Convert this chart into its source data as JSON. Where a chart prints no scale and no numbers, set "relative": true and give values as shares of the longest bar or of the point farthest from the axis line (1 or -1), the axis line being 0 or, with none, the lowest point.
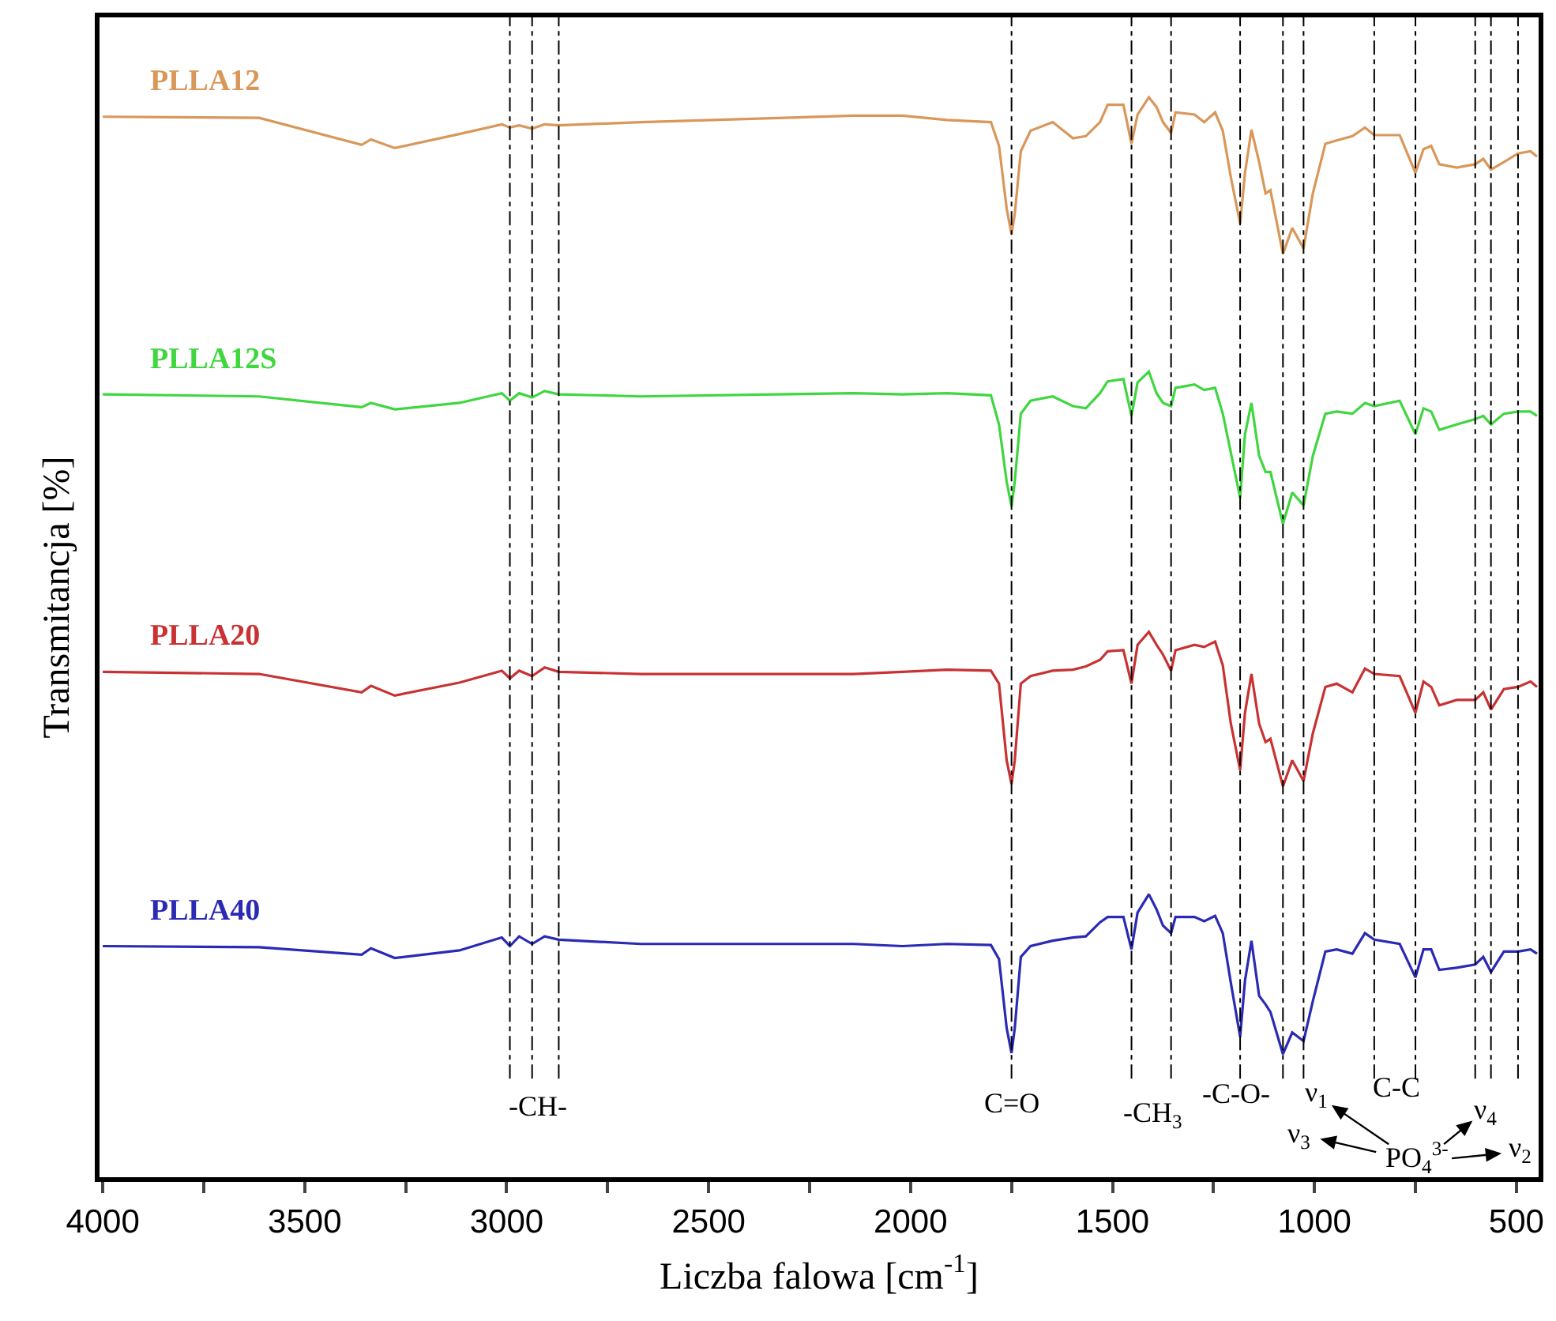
{
  "chart_data": {
    "type": "line",
    "relative": true,
    "xlabel": "Liczba falowa [cm$^{-1}$]",
    "ylabel": "Transmitancja [%]",
    "xlim": [
      4008,
      445
    ],
    "xticks": [
      4000,
      {
        "value": 3750,
        "label": null
      },
      3500,
      {
        "value": 3250,
        "label": null
      },
      3000,
      {
        "value": 2750,
        "label": null
      },
      2500,
      {
        "value": 2250,
        "label": null
      },
      2000,
      {
        "value": 1750,
        "label": null
      },
      1500,
      {
        "value": 1250,
        "label": null
      },
      1000,
      {
        "value": 750,
        "label": null
      },
      500
    ],
    "legend": false,
    "marker": "none",
    "line_style": "solid",
    "tick_labels": "x",
    "x": [
      4000,
      3613,
      3359,
      3336,
      3277,
      3117,
      3012,
      2992,
      2969,
      2937,
      2906,
      2871,
      2668,
      2141,
      2020,
      1910,
      1801,
      1781,
      1762,
      1750,
      1742,
      1727,
      1703,
      1648,
      1598,
      1566,
      1531,
      1512,
      1473,
      1453,
      1438,
      1410,
      1391,
      1375,
      1355,
      1344,
      1297,
      1273,
      1246,
      1227,
      1207,
      1184,
      1172,
      1156,
      1137,
      1121,
      1109,
      1078,
      1055,
      1027,
      1004,
      973,
      945,
      906,
      875,
      852,
      789,
      750,
      730,
      711,
      691,
      648,
      602,
      582,
      563,
      531,
      496,
      465,
      449
    ],
    "series": [
      {
        "name": "PLLA12",
        "color": "#d9975a",
        "values": [
          0.982,
          0.981,
          0.956,
          0.961,
          0.953,
          0.966,
          0.975,
          0.972,
          0.974,
          0.971,
          0.975,
          0.974,
          0.977,
          0.983,
          0.983,
          0.979,
          0.977,
          0.955,
          0.897,
          0.873,
          0.892,
          0.95,
          0.969,
          0.977,
          0.962,
          0.964,
          0.977,
          0.993,
          0.993,
          0.957,
          0.984,
          1,
          0.991,
          0.977,
          0.967,
          0.986,
          0.984,
          0.977,
          0.986,
          0.969,
          0.926,
          0.883,
          0.93,
          0.97,
          0.94,
          0.911,
          0.914,
          0.855,
          0.879,
          0.86,
          0.911,
          0.957,
          0.96,
          0.964,
          0.972,
          0.965,
          0.965,
          0.93,
          0.952,
          0.955,
          0.938,
          0.935,
          0.938,
          0.943,
          0.933,
          0.94,
          0.948,
          0.95,
          0.945
        ]
      },
      {
        "name": "PLLA12S",
        "color": "#3fd63f",
        "values": [
          0.725,
          0.723,
          0.713,
          0.717,
          0.711,
          0.717,
          0.726,
          0.719,
          0.726,
          0.722,
          0.728,
          0.725,
          0.723,
          0.726,
          0.725,
          0.726,
          0.724,
          0.697,
          0.644,
          0.621,
          0.644,
          0.707,
          0.719,
          0.723,
          0.714,
          0.712,
          0.726,
          0.737,
          0.739,
          0.705,
          0.736,
          0.746,
          0.726,
          0.717,
          0.714,
          0.731,
          0.734,
          0.729,
          0.731,
          0.707,
          0.671,
          0.629,
          0.688,
          0.717,
          0.668,
          0.653,
          0.653,
          0.605,
          0.634,
          0.622,
          0.668,
          0.707,
          0.709,
          0.707,
          0.717,
          0.714,
          0.719,
          0.688,
          0.712,
          0.709,
          0.692,
          0.697,
          0.702,
          0.705,
          0.697,
          0.707,
          0.709,
          0.709,
          0.705
        ]
      },
      {
        "name": "PLLA20",
        "color": "#c83232",
        "values": [
          0.468,
          0.466,
          0.449,
          0.455,
          0.446,
          0.458,
          0.469,
          0.462,
          0.469,
          0.464,
          0.472,
          0.468,
          0.466,
          0.466,
          0.468,
          0.47,
          0.469,
          0.457,
          0.386,
          0.364,
          0.386,
          0.457,
          0.464,
          0.469,
          0.47,
          0.473,
          0.479,
          0.487,
          0.488,
          0.457,
          0.493,
          0.505,
          0.493,
          0.484,
          0.469,
          0.488,
          0.493,
          0.491,
          0.496,
          0.474,
          0.42,
          0.377,
          0.43,
          0.466,
          0.42,
          0.403,
          0.406,
          0.362,
          0.386,
          0.367,
          0.411,
          0.454,
          0.457,
          0.449,
          0.471,
          0.466,
          0.464,
          0.43,
          0.459,
          0.454,
          0.437,
          0.442,
          0.442,
          0.449,
          0.433,
          0.452,
          0.454,
          0.459,
          0.454
        ]
      },
      {
        "name": "PLLA40",
        "color": "#2a2ab4",
        "values": [
          0.214,
          0.213,
          0.206,
          0.212,
          0.203,
          0.21,
          0.222,
          0.214,
          0.223,
          0.216,
          0.223,
          0.22,
          0.216,
          0.216,
          0.214,
          0.216,
          0.215,
          0.202,
          0.138,
          0.115,
          0.138,
          0.204,
          0.214,
          0.219,
          0.222,
          0.223,
          0.236,
          0.241,
          0.241,
          0.211,
          0.245,
          0.262,
          0.248,
          0.233,
          0.226,
          0.241,
          0.241,
          0.237,
          0.242,
          0.226,
          0.18,
          0.13,
          0.182,
          0.219,
          0.168,
          0.16,
          0.153,
          0.114,
          0.134,
          0.126,
          0.163,
          0.209,
          0.211,
          0.207,
          0.226,
          0.22,
          0.216,
          0.185,
          0.211,
          0.211,
          0.192,
          0.194,
          0.197,
          0.204,
          0.19,
          0.209,
          0.209,
          0.211,
          0.207
        ]
      }
    ],
    "ref_lines": [
      {
        "axis": "x",
        "value": 2992,
        "color": "#000000",
        "line_style": "dashed"
      },
      {
        "axis": "x",
        "value": 2937,
        "color": "#000000",
        "line_style": "dashed"
      },
      {
        "axis": "x",
        "value": 2871,
        "color": "#000000",
        "line_style": "dashed"
      },
      {
        "axis": "x",
        "value": 1750,
        "color": "#000000",
        "line_style": "dashed"
      },
      {
        "axis": "x",
        "value": 1453,
        "color": "#000000",
        "line_style": "dashed"
      },
      {
        "axis": "x",
        "value": 1355,
        "color": "#000000",
        "line_style": "dashed"
      },
      {
        "axis": "x",
        "value": 1184,
        "color": "#000000",
        "line_style": "dashed"
      },
      {
        "axis": "x",
        "value": 1078,
        "color": "#000000",
        "line_style": "dashed"
      },
      {
        "axis": "x",
        "value": 1027,
        "color": "#000000",
        "line_style": "dashed"
      },
      {
        "axis": "x",
        "value": 852,
        "color": "#000000",
        "line_style": "dashed"
      },
      {
        "axis": "x",
        "value": 750,
        "color": "#000000",
        "line_style": "dashed"
      },
      {
        "axis": "x",
        "value": 602,
        "color": "#000000",
        "line_style": "dashed"
      },
      {
        "axis": "x",
        "value": 563,
        "color": "#000000",
        "line_style": "dashed"
      },
      {
        "axis": "x",
        "value": 496,
        "color": "#000000",
        "line_style": "dashed"
      }
    ],
    "annotations": [
      "-CH-",
      "C=O",
      "-CH$_{3}$",
      "-C-O-",
      "ν$_{1}$",
      "ν$_{3}$",
      "C-C",
      "ν$_{4}$",
      "ν$_{2}$",
      "PO$_{4}$$^{3-}$"
    ]
  }
}
